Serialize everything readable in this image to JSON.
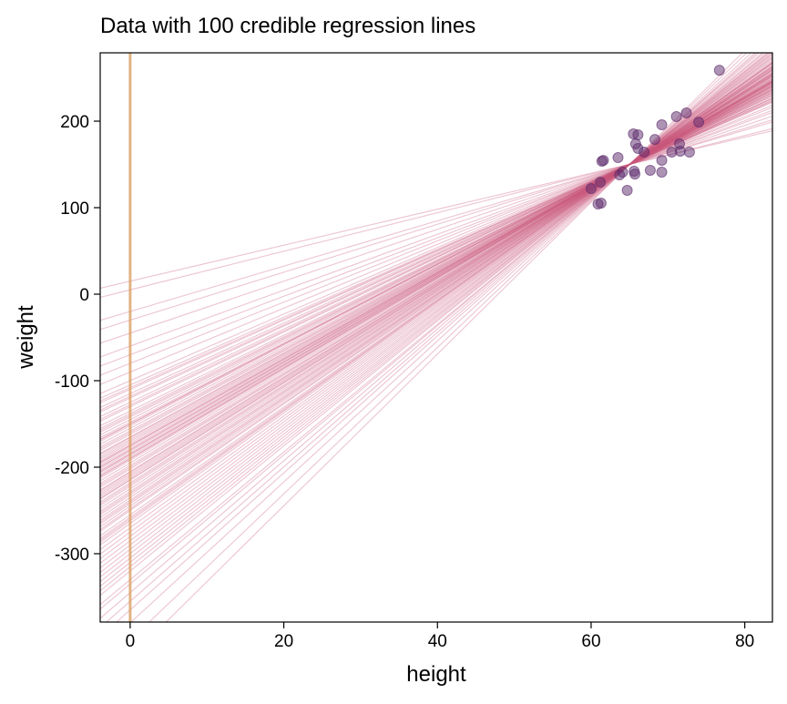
{
  "chart_data": {
    "type": "scatter",
    "title": "Data with 100 credible regression lines",
    "xlabel": "height",
    "ylabel": "weight",
    "xlim": [
      -3.9,
      83.6
    ],
    "ylim": [
      -379,
      279
    ],
    "xticks": [
      0,
      20,
      40,
      60,
      80
    ],
    "yticks": [
      -300,
      -200,
      -100,
      0,
      100,
      200
    ],
    "grid": false,
    "colors": {
      "points": "#5b2a6b",
      "lines": "#c8577c",
      "vline": "#d9a066"
    },
    "vline_x": 0,
    "points": [
      [
        76.7,
        258.9
      ],
      [
        71.1,
        205.3
      ],
      [
        72.4,
        209.5
      ],
      [
        74.0,
        198.9
      ],
      [
        69.2,
        195.8
      ],
      [
        65.5,
        185.3
      ],
      [
        66.1,
        184.2
      ],
      [
        68.3,
        178.9
      ],
      [
        65.8,
        173.7
      ],
      [
        66.1,
        168.4
      ],
      [
        66.9,
        164.2
      ],
      [
        71.5,
        173.7
      ],
      [
        70.5,
        164.2
      ],
      [
        71.6,
        165.3
      ],
      [
        72.8,
        164.2
      ],
      [
        69.2,
        154.7
      ],
      [
        61.6,
        154.7
      ],
      [
        61.4,
        153.7
      ],
      [
        63.5,
        157.9
      ],
      [
        67.7,
        143.2
      ],
      [
        69.2,
        141.1
      ],
      [
        65.6,
        142.1
      ],
      [
        65.7,
        138.9
      ],
      [
        64.1,
        141.1
      ],
      [
        63.7,
        137.9
      ],
      [
        61.2,
        129.5
      ],
      [
        60.0,
        122.1
      ],
      [
        64.7,
        120.0
      ],
      [
        60.9,
        104.2
      ],
      [
        61.3,
        105.3
      ]
    ],
    "lines": [
      [
        -195,
        5.31
      ],
      [
        -180,
        5.08
      ],
      [
        -230,
        5.85
      ],
      [
        -150,
        4.62
      ],
      [
        -260,
        6.31
      ],
      [
        -120,
        4.15
      ],
      [
        -205,
        5.46
      ],
      [
        -175,
        5.0
      ],
      [
        -310,
        7.08
      ],
      [
        -90,
        3.69
      ],
      [
        -215,
        5.62
      ],
      [
        -185,
        5.15
      ],
      [
        -240,
        6.0
      ],
      [
        -160,
        4.77
      ],
      [
        -270,
        6.46
      ],
      [
        -60,
        3.23
      ],
      [
        -200,
        5.38
      ],
      [
        -190,
        5.23
      ],
      [
        -335,
        7.46
      ],
      [
        -140,
        4.46
      ],
      [
        -225,
        5.77
      ],
      [
        -170,
        4.92
      ],
      [
        -250,
        6.15
      ],
      [
        -110,
        4.0
      ],
      [
        -285,
        6.69
      ],
      [
        -30,
        2.77
      ],
      [
        -210,
        5.54
      ],
      [
        -165,
        4.85
      ],
      [
        -355,
        7.77
      ],
      [
        -130,
        4.31
      ],
      [
        -190,
        5.23
      ],
      [
        -178,
        5.05
      ],
      [
        -245,
        6.08
      ],
      [
        -145,
        4.54
      ],
      [
        -300,
        6.92
      ],
      [
        -100,
        3.85
      ],
      [
        -220,
        5.69
      ],
      [
        -182,
        5.11
      ],
      [
        -380,
        8.15
      ],
      [
        -155,
        4.69
      ],
      [
        -235,
        5.92
      ],
      [
        -172,
        4.95
      ],
      [
        -265,
        6.38
      ],
      [
        -125,
        4.23
      ],
      [
        -290,
        6.77
      ],
      [
        -80,
        3.54
      ],
      [
        -198,
        5.35
      ],
      [
        -188,
        5.2
      ],
      [
        -320,
        7.23
      ],
      [
        -138,
        4.43
      ],
      [
        -228,
        5.82
      ],
      [
        -168,
        4.89
      ],
      [
        -255,
        6.23
      ],
      [
        -115,
        4.08
      ],
      [
        -275,
        6.54
      ],
      [
        5,
        2.23
      ],
      [
        -208,
        5.51
      ],
      [
        -176,
        5.02
      ],
      [
        -345,
        7.62
      ],
      [
        -148,
        4.58
      ],
      [
        -242,
        6.03
      ],
      [
        -162,
        4.8
      ],
      [
        -262,
        6.34
      ],
      [
        -105,
        3.92
      ],
      [
        -295,
        6.85
      ],
      [
        -45,
        3.0
      ],
      [
        -212,
        5.57
      ],
      [
        -184,
        5.14
      ],
      [
        -400,
        8.46
      ],
      [
        -135,
        4.38
      ],
      [
        -218,
        5.66
      ],
      [
        -174,
        4.98
      ],
      [
        -238,
        5.97
      ],
      [
        -152,
        4.65
      ],
      [
        -305,
        7.0
      ],
      [
        -70,
        3.38
      ],
      [
        -202,
        5.42
      ],
      [
        -192,
        5.26
      ],
      [
        -330,
        7.38
      ],
      [
        -142,
        4.49
      ],
      [
        -232,
        5.88
      ],
      [
        -166,
        4.86
      ],
      [
        -248,
        6.12
      ],
      [
        -118,
        4.12
      ],
      [
        -280,
        6.62
      ],
      [
        15,
        2.08
      ],
      [
        -206,
        5.48
      ],
      [
        -186,
        5.17
      ],
      [
        -365,
        7.92
      ],
      [
        -128,
        4.28
      ],
      [
        -222,
        5.72
      ],
      [
        -158,
        4.74
      ],
      [
        -258,
        6.28
      ],
      [
        -108,
        3.97
      ],
      [
        -315,
        7.15
      ],
      [
        -20,
        2.62
      ],
      [
        -214,
        5.6
      ],
      [
        -180,
        5.08
      ],
      [
        -420,
        8.77
      ],
      [
        -150,
        4.62
      ]
    ]
  }
}
